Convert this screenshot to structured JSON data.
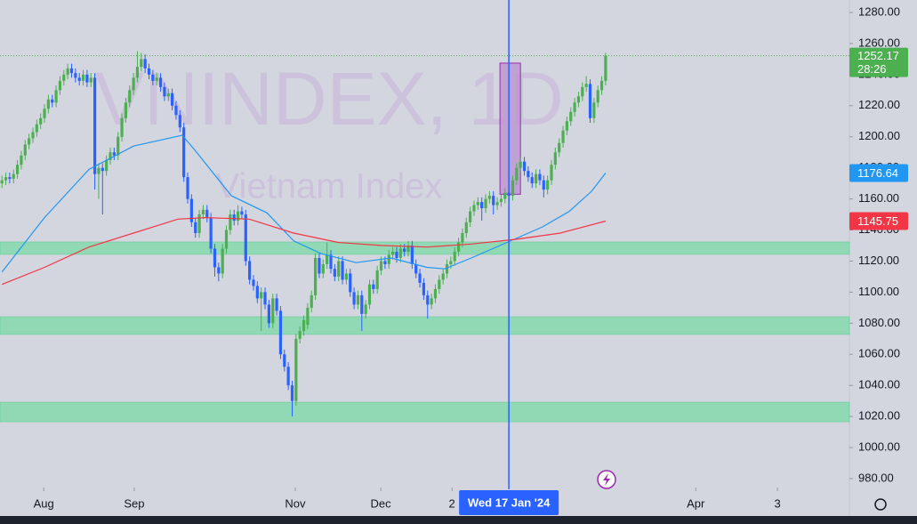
{
  "chart_data": {
    "type": "candlestick",
    "watermark": "VNINDEX, 1D",
    "subtitle": "Vietnam Index",
    "countdown": "28:26",
    "xlim": [
      -0.5,
      219
    ],
    "xticks": [
      {
        "value": 10.8,
        "label": "Aug"
      },
      {
        "value": 34.2,
        "label": "Sep"
      },
      {
        "value": 75.8,
        "label": "Nov"
      },
      {
        "value": 97.9,
        "label": "Dec"
      },
      {
        "value": 116.3,
        "label": "2"
      },
      {
        "value": 179.3,
        "label": "Apr"
      },
      {
        "value": 200.4,
        "label": "3"
      }
    ],
    "ylim": [
      980,
      1280
    ],
    "yticks": [
      {
        "value": 980,
        "label": "980.00"
      },
      {
        "value": 1000,
        "label": "1000.00"
      },
      {
        "value": 1020,
        "label": "1020.00"
      },
      {
        "value": 1040,
        "label": "1040.00"
      },
      {
        "value": 1060,
        "label": "1060.00"
      },
      {
        "value": 1080,
        "label": "1080.00"
      },
      {
        "value": 1100,
        "label": "1100.00"
      },
      {
        "value": 1120,
        "label": "1120.00"
      },
      {
        "value": 1140,
        "label": "1140.00"
      },
      {
        "value": 1160,
        "label": "1160.00"
      },
      {
        "value": 1180,
        "label": "1180.00"
      },
      {
        "value": 1200,
        "label": "1200.00"
      },
      {
        "value": 1220,
        "label": "1220.00"
      },
      {
        "value": 1240,
        "label": "1240.00"
      },
      {
        "value": 1260,
        "label": "1260.00"
      },
      {
        "value": 1280,
        "label": "1280.00"
      }
    ],
    "crosshair": {
      "x": 131,
      "label": "Wed 17 Jan '24"
    },
    "zones": [
      [
        1124.3,
        1132.3
      ],
      [
        1072.8,
        1084.2
      ],
      [
        1016.6,
        1029.2
      ]
    ],
    "zone_color": "#7fd9a9",
    "box": {
      "x": [
        128.7,
        134
      ],
      "y": [
        1163,
        1247.4
      ]
    },
    "box_color": "#b98fcf",
    "series": [
      {
        "type": "candlestick",
        "up_color": "#4caf50",
        "down_color": "#2962ff",
        "values": [
          [
            1170,
            1175,
            1167,
            1172
          ],
          [
            1172,
            1177,
            1169,
            1174
          ],
          [
            1174,
            1177,
            1170,
            1173
          ],
          [
            1173,
            1179,
            1170,
            1176
          ],
          [
            1176,
            1185,
            1173,
            1182
          ],
          [
            1182,
            1191,
            1179,
            1188
          ],
          [
            1188,
            1198,
            1185,
            1195
          ],
          [
            1195,
            1202,
            1192,
            1199
          ],
          [
            1199,
            1206,
            1196,
            1203
          ],
          [
            1203,
            1211,
            1200,
            1208
          ],
          [
            1208,
            1215,
            1205,
            1212
          ],
          [
            1212,
            1221,
            1209,
            1218
          ],
          [
            1218,
            1227,
            1215,
            1224
          ],
          [
            1224,
            1227,
            1219,
            1222
          ],
          [
            1222,
            1233,
            1219,
            1230
          ],
          [
            1230,
            1239,
            1227,
            1236
          ],
          [
            1236,
            1243,
            1233,
            1240
          ],
          [
            1240,
            1247,
            1237,
            1244
          ],
          [
            1244,
            1247,
            1238,
            1241
          ],
          [
            1241,
            1244,
            1235,
            1238
          ],
          [
            1238,
            1241,
            1233,
            1236
          ],
          [
            1236,
            1243,
            1233,
            1240
          ],
          [
            1240,
            1243,
            1232,
            1235
          ],
          [
            1235,
            1241,
            1232,
            1238
          ],
          [
            1238,
            1241,
            1166,
            1176
          ],
          [
            1176,
            1183,
            1160,
            1180
          ],
          [
            1180,
            1183,
            1150,
            1178
          ],
          [
            1178,
            1188,
            1175,
            1185
          ],
          [
            1185,
            1193,
            1182,
            1190
          ],
          [
            1190,
            1193,
            1185,
            1188
          ],
          [
            1188,
            1203,
            1185,
            1200
          ],
          [
            1200,
            1215,
            1197,
            1212
          ],
          [
            1212,
            1225,
            1209,
            1222
          ],
          [
            1222,
            1233,
            1219,
            1230
          ],
          [
            1230,
            1241,
            1227,
            1238
          ],
          [
            1238,
            1255,
            1235,
            1245
          ],
          [
            1245,
            1254,
            1242,
            1250
          ],
          [
            1250,
            1253,
            1241,
            1244
          ],
          [
            1244,
            1247,
            1237,
            1240
          ],
          [
            1240,
            1243,
            1233,
            1236
          ],
          [
            1236,
            1241,
            1233,
            1238
          ],
          [
            1238,
            1241,
            1229,
            1232
          ],
          [
            1232,
            1235,
            1223,
            1226
          ],
          [
            1226,
            1231,
            1223,
            1228
          ],
          [
            1228,
            1231,
            1217,
            1220
          ],
          [
            1220,
            1223,
            1211,
            1214
          ],
          [
            1214,
            1217,
            1203,
            1206
          ],
          [
            1206,
            1209,
            1171,
            1174
          ],
          [
            1174,
            1177,
            1157,
            1160
          ],
          [
            1160,
            1163,
            1142,
            1145
          ],
          [
            1145,
            1148,
            1135,
            1138
          ],
          [
            1138,
            1153,
            1135,
            1150
          ],
          [
            1150,
            1156,
            1147,
            1153
          ],
          [
            1153,
            1156,
            1145,
            1148
          ],
          [
            1148,
            1151,
            1125,
            1128
          ],
          [
            1128,
            1131,
            1110,
            1116
          ],
          [
            1116,
            1119,
            1107,
            1112
          ],
          [
            1112,
            1131,
            1109,
            1128
          ],
          [
            1128,
            1143,
            1125,
            1140
          ],
          [
            1140,
            1153,
            1137,
            1150
          ],
          [
            1150,
            1153,
            1143,
            1146
          ],
          [
            1146,
            1156,
            1143,
            1152
          ],
          [
            1152,
            1155,
            1147,
            1150
          ],
          [
            1150,
            1153,
            1117,
            1120
          ],
          [
            1120,
            1123,
            1105,
            1108
          ],
          [
            1108,
            1111,
            1101,
            1104
          ],
          [
            1104,
            1107,
            1093,
            1096
          ],
          [
            1096,
            1103,
            1075,
            1100
          ],
          [
            1100,
            1103,
            1089,
            1092
          ],
          [
            1092,
            1095,
            1077,
            1080
          ],
          [
            1080,
            1099,
            1077,
            1096
          ],
          [
            1096,
            1099,
            1085,
            1088
          ],
          [
            1088,
            1091,
            1057,
            1060
          ],
          [
            1060,
            1063,
            1049,
            1052
          ],
          [
            1052,
            1055,
            1037,
            1040
          ],
          [
            1040,
            1043,
            1020,
            1030
          ],
          [
            1030,
            1073,
            1027,
            1070
          ],
          [
            1070,
            1078,
            1067,
            1075
          ],
          [
            1075,
            1085,
            1072,
            1082
          ],
          [
            1079,
            1093,
            1076,
            1090
          ],
          [
            1090,
            1101,
            1087,
            1098
          ],
          [
            1098,
            1125,
            1095,
            1122
          ],
          [
            1122,
            1125,
            1109,
            1112
          ],
          [
            1112,
            1121,
            1109,
            1118
          ],
          [
            1118,
            1132,
            1115,
            1124
          ],
          [
            1124,
            1127,
            1112,
            1115
          ],
          [
            1115,
            1118,
            1107,
            1110
          ],
          [
            1110,
            1123,
            1107,
            1120
          ],
          [
            1120,
            1123,
            1105,
            1108
          ],
          [
            1108,
            1115,
            1105,
            1112
          ],
          [
            1112,
            1115,
            1097,
            1100
          ],
          [
            1100,
            1103,
            1089,
            1092
          ],
          [
            1092,
            1101,
            1089,
            1098
          ],
          [
            1098,
            1101,
            1075,
            1086
          ],
          [
            1086,
            1095,
            1083,
            1092
          ],
          [
            1092,
            1108,
            1089,
            1105
          ],
          [
            1105,
            1108,
            1099,
            1102
          ],
          [
            1102,
            1117,
            1099,
            1114
          ],
          [
            1114,
            1123,
            1111,
            1120
          ],
          [
            1120,
            1123,
            1115,
            1118
          ],
          [
            1118,
            1127,
            1115,
            1124
          ],
          [
            1124,
            1129,
            1121,
            1126
          ],
          [
            1126,
            1129,
            1119,
            1122
          ],
          [
            1122,
            1131,
            1119,
            1128
          ],
          [
            1128,
            1131,
            1123,
            1126
          ],
          [
            1126,
            1133,
            1123,
            1130
          ],
          [
            1130,
            1133,
            1115,
            1118
          ],
          [
            1118,
            1121,
            1109,
            1112
          ],
          [
            1112,
            1115,
            1103,
            1106
          ],
          [
            1106,
            1109,
            1095,
            1098
          ],
          [
            1098,
            1101,
            1083,
            1092
          ],
          [
            1092,
            1099,
            1089,
            1096
          ],
          [
            1096,
            1105,
            1093,
            1102
          ],
          [
            1102,
            1111,
            1099,
            1108
          ],
          [
            1108,
            1115,
            1105,
            1112
          ],
          [
            1112,
            1121,
            1109,
            1118
          ],
          [
            1118,
            1123,
            1115,
            1120
          ],
          [
            1120,
            1129,
            1117,
            1126
          ],
          [
            1126,
            1135,
            1123,
            1132
          ],
          [
            1132,
            1141,
            1129,
            1138
          ],
          [
            1138,
            1148,
            1135,
            1145
          ],
          [
            1145,
            1155,
            1142,
            1152
          ],
          [
            1152,
            1159,
            1149,
            1156
          ],
          [
            1156,
            1161,
            1153,
            1158
          ],
          [
            1158,
            1161,
            1146,
            1154
          ],
          [
            1154,
            1163,
            1151,
            1160
          ],
          [
            1160,
            1165,
            1157,
            1162
          ],
          [
            1162,
            1165,
            1150,
            1156
          ],
          [
            1156,
            1161,
            1153,
            1158
          ],
          [
            1158,
            1163,
            1155,
            1160
          ],
          [
            1160,
            1167,
            1157,
            1164
          ],
          [
            1164,
            1167,
            1159,
            1162
          ],
          [
            1162,
            1175,
            1159,
            1172
          ],
          [
            1172,
            1183,
            1169,
            1180
          ],
          [
            1180,
            1187,
            1177,
            1184
          ],
          [
            1184,
            1187,
            1175,
            1178
          ],
          [
            1178,
            1181,
            1171,
            1174
          ],
          [
            1174,
            1177,
            1167,
            1170
          ],
          [
            1170,
            1179,
            1167,
            1176
          ],
          [
            1176,
            1179,
            1169,
            1172
          ],
          [
            1172,
            1175,
            1161,
            1166
          ],
          [
            1166,
            1175,
            1163,
            1172
          ],
          [
            1172,
            1185,
            1169,
            1182
          ],
          [
            1182,
            1193,
            1179,
            1190
          ],
          [
            1190,
            1199,
            1187,
            1196
          ],
          [
            1196,
            1207,
            1193,
            1204
          ],
          [
            1204,
            1213,
            1201,
            1210
          ],
          [
            1210,
            1219,
            1207,
            1216
          ],
          [
            1216,
            1225,
            1213,
            1222
          ],
          [
            1222,
            1229,
            1219,
            1226
          ],
          [
            1226,
            1235,
            1223,
            1232
          ],
          [
            1232,
            1239,
            1229,
            1234
          ],
          [
            1234,
            1237,
            1209,
            1212
          ],
          [
            1212,
            1225,
            1209,
            1222
          ],
          [
            1222,
            1233,
            1219,
            1230
          ],
          [
            1230,
            1239,
            1227,
            1236
          ],
          [
            1236,
            1254,
            1233,
            1252.17
          ]
        ]
      },
      {
        "type": "line",
        "color": "#2196f3",
        "x": [
          0,
          11,
          22.5,
          34,
          46.6,
          50,
          59.3,
          68.5,
          75.4,
          82.3,
          91.5,
          100.6,
          109.8,
          114.4,
          121.3,
          130.5,
          139.7,
          146.6,
          152.4,
          156
        ],
        "values": [
          1113,
          1148,
          1179,
          1194,
          1201,
          1191,
          1162,
          1151,
          1133,
          1125,
          1119,
          1122,
          1116,
          1115,
          1122,
          1132,
          1142,
          1152,
          1165,
          1176.64
        ]
      },
      {
        "type": "line",
        "color": "#f23645",
        "x": [
          0,
          11,
          22.5,
          34,
          45.5,
          52.4,
          63.9,
          75.4,
          86.9,
          98.4,
          109.8,
          121.3,
          132.8,
          144.3,
          156
        ],
        "values": [
          1105,
          1116,
          1129,
          1138,
          1147,
          1148,
          1147,
          1138,
          1132,
          1130,
          1129,
          1131,
          1134,
          1138,
          1145.75
        ]
      }
    ]
  }
}
